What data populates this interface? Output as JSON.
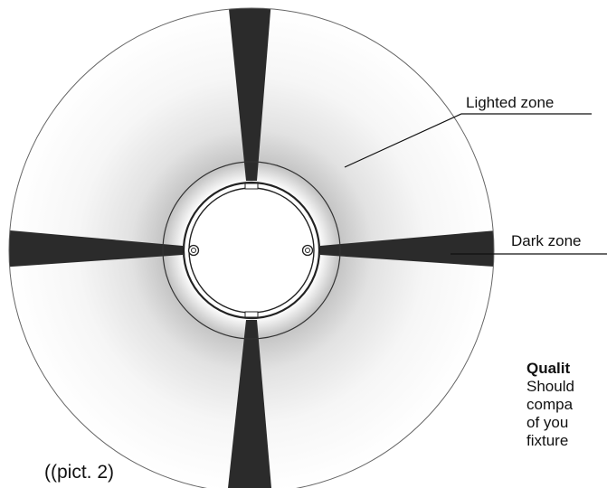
{
  "labels": {
    "lighted_zone": "Lighted zone",
    "dark_zone": "Dark zone",
    "figure_caption": "((pict. 2)"
  },
  "side_text": {
    "title": "Qualit",
    "lines": [
      "Should",
      "compa",
      "of you",
      "fixture"
    ]
  },
  "colors": {
    "dark_zone": "#2b2b2b",
    "outline": "#333333",
    "lighted_center": "#ffffff",
    "lighted_edge": "#bdbdbd"
  }
}
